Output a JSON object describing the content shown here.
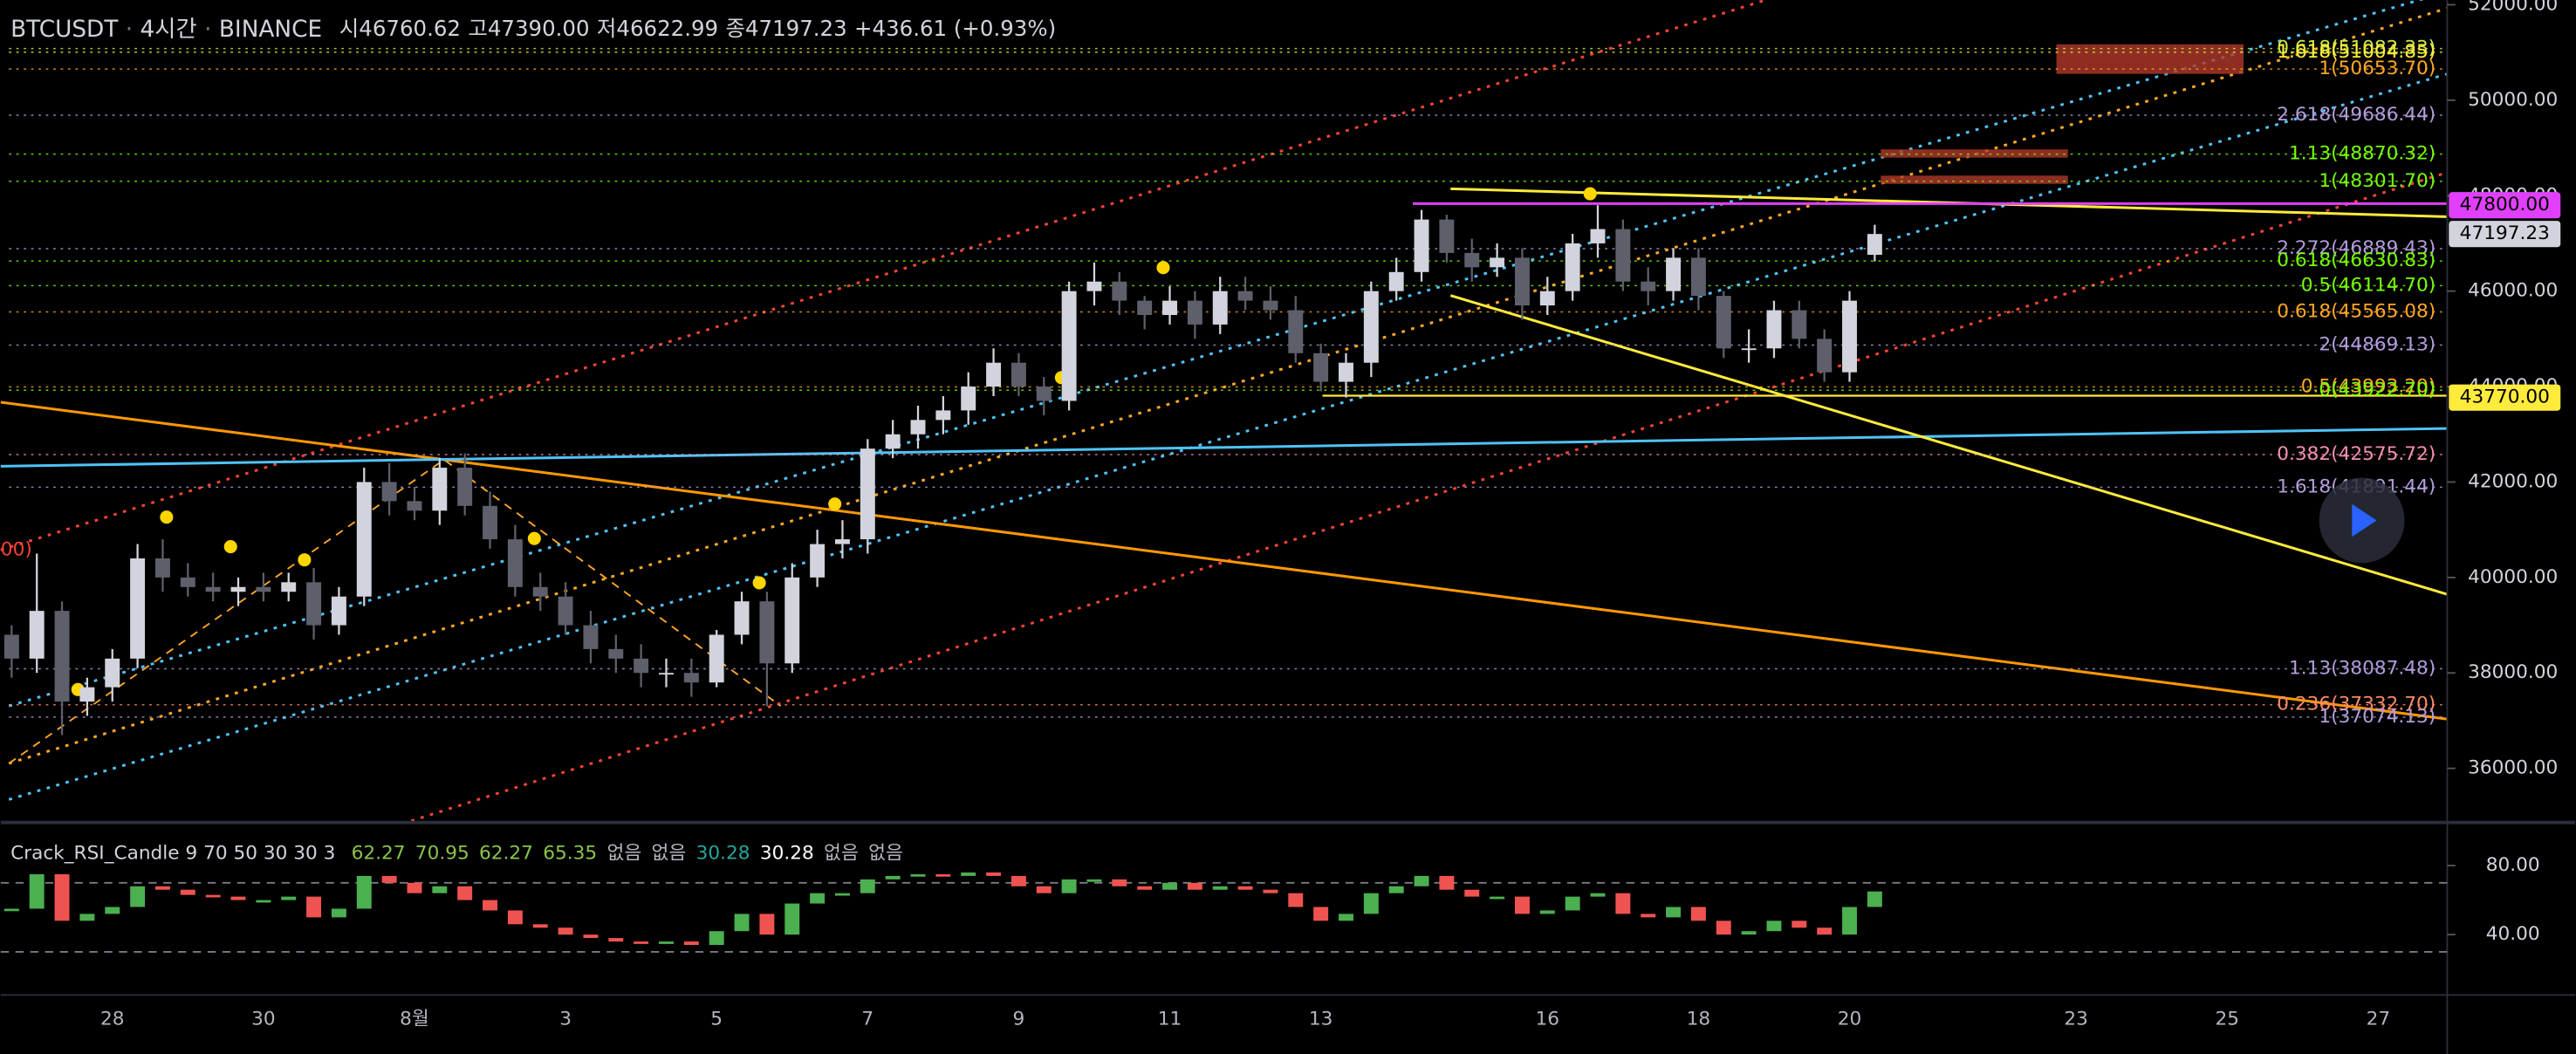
{
  "chart_data": [
    {
      "type": "candlestick",
      "header": {
        "symbol": "BTCUSDT",
        "interval": "4시간",
        "exchange": "BINANCE",
        "ohlc": [
          "시46760.62",
          "고47390.00",
          "저46622.99",
          "종47197.23"
        ],
        "change": "+436.61 (+0.93%)"
      },
      "annotation": "00)",
      "categories": [
        null,
        null,
        null,
        null,
        "28",
        null,
        null,
        null,
        null,
        null,
        "30",
        null,
        null,
        null,
        null,
        null,
        "8월",
        null,
        null,
        null,
        null,
        null,
        "3",
        null,
        null,
        null,
        null,
        null,
        "5",
        null,
        null,
        null,
        null,
        null,
        "7",
        null,
        null,
        null,
        null,
        null,
        "9",
        null,
        null,
        null,
        null,
        null,
        "11",
        null,
        null,
        null,
        null,
        null,
        "13",
        null,
        null,
        null,
        null,
        null,
        null,
        null,
        null,
        "16",
        null,
        null,
        null,
        null,
        null,
        "18",
        null,
        null,
        null,
        null,
        null,
        "20",
        null,
        null,
        null,
        null,
        null,
        null,
        null,
        null,
        "23",
        null,
        null,
        null,
        null,
        null,
        "25",
        null,
        null,
        null,
        null,
        null,
        "27",
        null,
        null
      ],
      "open": [
        38800,
        38300,
        39300,
        37400,
        37700,
        38300,
        40400,
        40000,
        39800,
        39700,
        39800,
        39700,
        39900,
        39000,
        39600,
        42000,
        41600,
        41400,
        42300,
        41500,
        40800,
        39800,
        39600,
        39000,
        38500,
        38300,
        38000,
        38000,
        37800,
        38800,
        39500,
        38200,
        40000,
        40700,
        40800,
        42700,
        43000,
        43300,
        43500,
        44000,
        44500,
        44000,
        43700,
        46000,
        46200,
        45800,
        45500,
        45800,
        45300,
        46000,
        45800,
        45600,
        44700,
        44100,
        44500,
        46000,
        46400,
        47500,
        46800,
        46500,
        46700,
        45700,
        46000,
        47000,
        47300,
        46200,
        46000,
        46700,
        45900,
        44800,
        44800,
        45600,
        45000,
        44300,
        46760.62,
        null,
        null,
        null,
        null,
        null,
        null,
        null,
        null,
        null,
        null,
        null,
        null,
        null,
        null,
        null,
        null,
        null,
        null,
        null,
        null,
        null,
        null
      ],
      "high": [
        39000,
        40500,
        39500,
        37900,
        38500,
        40700,
        40800,
        40300,
        40100,
        40000,
        40100,
        40100,
        40200,
        39800,
        42300,
        42400,
        41900,
        42500,
        42600,
        41800,
        41100,
        40100,
        39900,
        39300,
        38800,
        38600,
        38300,
        38300,
        38900,
        39700,
        39700,
        40300,
        41000,
        41200,
        42900,
        43300,
        43600,
        43800,
        44300,
        44800,
        44700,
        44200,
        46200,
        46600,
        46400,
        45900,
        46100,
        46000,
        46300,
        46300,
        46100,
        45900,
        44900,
        44700,
        46200,
        46700,
        47700,
        47600,
        47100,
        47000,
        46900,
        46300,
        47200,
        47800,
        47500,
        46500,
        46900,
        46900,
        46000,
        45200,
        45800,
        45800,
        45200,
        46000,
        47390,
        null,
        null,
        null,
        null,
        null,
        null,
        null,
        null,
        null,
        null,
        null,
        null,
        null,
        null,
        null,
        null,
        null,
        null,
        null,
        null,
        null,
        null
      ],
      "low": [
        37900,
        38000,
        36700,
        37100,
        37400,
        38100,
        39700,
        39600,
        39500,
        39400,
        39500,
        39500,
        38700,
        38800,
        39400,
        41300,
        41200,
        41100,
        41300,
        40600,
        39600,
        39300,
        38800,
        38200,
        38000,
        37700,
        37700,
        37500,
        37700,
        38600,
        37300,
        38000,
        39800,
        40400,
        40500,
        42500,
        42700,
        43000,
        43200,
        43800,
        43800,
        43400,
        43500,
        45700,
        45500,
        45200,
        45300,
        45000,
        45100,
        45600,
        45400,
        44500,
        43900,
        43770,
        44200,
        45800,
        46200,
        46600,
        46200,
        46300,
        45400,
        45500,
        45800,
        46700,
        46000,
        45700,
        45800,
        45600,
        44600,
        44500,
        44600,
        44800,
        44100,
        44100,
        46622.99,
        null,
        null,
        null,
        null,
        null,
        null,
        null,
        null,
        null,
        null,
        null,
        null,
        null,
        null,
        null,
        null,
        null,
        null,
        null,
        null,
        null,
        null
      ],
      "close": [
        38300,
        39300,
        37400,
        37700,
        38300,
        40400,
        40000,
        39800,
        39700,
        39800,
        39700,
        39900,
        39000,
        39600,
        42000,
        41600,
        41400,
        42300,
        41500,
        40800,
        39800,
        39600,
        39000,
        38500,
        38300,
        38000,
        38000,
        37800,
        38800,
        39500,
        38200,
        40000,
        40700,
        40800,
        42700,
        43000,
        43300,
        43500,
        44000,
        44500,
        44000,
        43700,
        46000,
        46200,
        45800,
        45500,
        45800,
        45300,
        46000,
        45800,
        45600,
        44700,
        44100,
        44500,
        46000,
        46400,
        47500,
        46800,
        46500,
        46700,
        45700,
        46000,
        47000,
        47300,
        46200,
        46000,
        46700,
        45900,
        44800,
        44800,
        45600,
        45000,
        44300,
        45800,
        47197.23,
        null,
        null,
        null,
        null,
        null,
        null,
        null,
        null,
        null,
        null,
        null,
        null,
        null,
        null,
        null,
        null,
        null,
        null,
        null,
        null,
        null,
        null
      ],
      "up_color": "#d1d4dc",
      "down_color": "#5d606b",
      "ylim": [
        34900,
        52100
      ],
      "yticks": [
        {
          "value": 36000,
          "label": "36000.00"
        },
        {
          "value": 38000,
          "label": "38000.00"
        },
        {
          "value": 40000,
          "label": "40000.00"
        },
        {
          "value": 42000,
          "label": "42000.00"
        },
        {
          "value": 44000,
          "label": "44000.00"
        },
        {
          "value": 46000,
          "label": "46000.00"
        },
        {
          "value": 48000,
          "label": "48000.00"
        },
        {
          "value": 50000,
          "label": "50000.00"
        },
        {
          "value": 52000,
          "label": "52000.00"
        }
      ],
      "levels": [
        {
          "label": "0.618(51082.33)",
          "value": 51082.33,
          "color": "#c6e84a"
        },
        {
          "label": "1.618(51004.85)",
          "value": 51004.85,
          "color": "#ffeb3b"
        },
        {
          "label": "1(50653.70)",
          "value": 50653.7,
          "color": "#ffa726"
        },
        {
          "label": "2.618(49686.44)",
          "value": 49686.44,
          "color": "#b39ddb"
        },
        {
          "label": "1.13(48870.32)",
          "value": 48870.32,
          "color": "#76ff03"
        },
        {
          "label": "1(48301.70)",
          "value": 48301.7,
          "color": "#76ff03"
        },
        {
          "label": "2.272(46889.43)",
          "value": 46889.43,
          "color": "#b39ddb"
        },
        {
          "label": "0.618(46630.83)",
          "value": 46630.83,
          "color": "#76ff03"
        },
        {
          "label": "0.5(46114.70)",
          "value": 46114.7,
          "color": "#76ff03"
        },
        {
          "label": "0.618(45565.08)",
          "value": 45565.08,
          "color": "#ffa726"
        },
        {
          "label": "2(44869.13)",
          "value": 44869.13,
          "color": "#b39ddb"
        },
        {
          "label": "0.5(43993.20)",
          "value": 43993.2,
          "color": "#ffa726"
        },
        {
          "label": "0(43922.70)",
          "value": 43922.7,
          "color": "#76ff03"
        },
        {
          "label": "0.382(42575.72)",
          "value": 42575.72,
          "color": "#f48fb1"
        },
        {
          "label": "1.618(41891.44)",
          "value": 41891.44,
          "color": "#b39ddb"
        },
        {
          "label": "1.13(38087.48)",
          "value": 38087.48,
          "color": "#b39ddb"
        },
        {
          "label": "0.236(37332.70)",
          "value": 37332.7,
          "color": "#ff8a65"
        },
        {
          "label": "1(37074.13)",
          "value": 37074.13,
          "color": "#b39ddb"
        }
      ],
      "price_tags": [
        {
          "label": "47800.00",
          "value": 47800,
          "color": "#e040fb"
        },
        {
          "label": "47197.23",
          "value": 47197.23,
          "color": "#d1d4dc"
        },
        {
          "label": "43770.00",
          "value": 43770,
          "color": "#ffeb3b"
        }
      ]
    },
    {
      "type": "rsi-candle",
      "title": "Crack_RSI_Candle 9 70 50 30 30 3",
      "readouts": [
        {
          "text": "62.27",
          "color": "#8bc34a"
        },
        {
          "text": "70.95",
          "color": "#8bc34a"
        },
        {
          "text": "62.27",
          "color": "#8bc34a"
        },
        {
          "text": "65.35",
          "color": "#8bc34a"
        },
        {
          "text": "없음",
          "color": "#b2b5be"
        },
        {
          "text": "없음",
          "color": "#b2b5be"
        },
        {
          "text": "30.28",
          "color": "#26a69a"
        },
        {
          "text": "30.28",
          "color": "#ffffff"
        },
        {
          "text": "없음",
          "color": "#b2b5be"
        },
        {
          "text": "없음",
          "color": "#b2b5be"
        }
      ],
      "values": [
        55,
        75,
        48,
        52,
        56,
        68,
        66,
        63,
        62,
        60,
        60,
        62,
        50,
        55,
        74,
        70,
        64,
        68,
        60,
        54,
        46,
        44,
        40,
        38,
        36,
        35,
        36,
        34,
        42,
        52,
        40,
        58,
        64,
        64,
        72,
        74,
        75,
        74,
        76,
        74,
        68,
        64,
        72,
        72,
        68,
        66,
        70,
        66,
        68,
        66,
        64,
        56,
        48,
        52,
        64,
        68,
        74,
        66,
        62,
        62,
        52,
        54,
        62,
        64,
        52,
        50,
        56,
        48,
        40,
        42,
        48,
        44,
        40,
        56,
        65,
        null,
        null,
        null,
        null,
        null,
        null,
        null,
        null,
        null,
        null,
        null,
        null,
        null,
        null,
        null,
        null,
        null,
        null,
        null,
        null,
        null,
        null
      ],
      "up_color": "#4caf50",
      "down_color": "#ef5350",
      "ylim": [
        6,
        104
      ],
      "yticks": [
        {
          "value": 40,
          "label": "40.00"
        },
        {
          "value": 80,
          "label": "80.00"
        }
      ],
      "bands": [
        70,
        30
      ]
    }
  ]
}
